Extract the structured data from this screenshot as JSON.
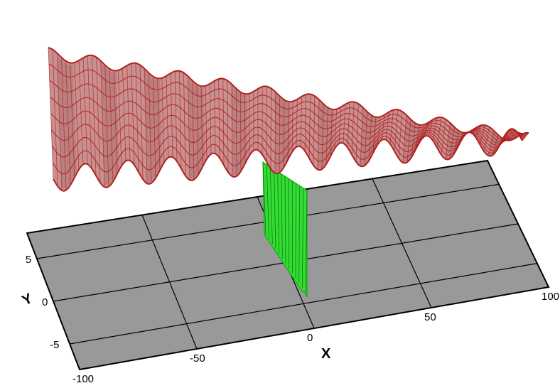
{
  "chart_data": {
    "type": "surface-3d",
    "title": "",
    "x_axis": {
      "label": "X",
      "ticks": [
        -100,
        -50,
        0,
        50,
        100
      ],
      "range": [
        -100,
        100
      ]
    },
    "y_axis": {
      "label": "Y",
      "ticks": [
        -5,
        0,
        5
      ],
      "range": [
        -8,
        8
      ]
    },
    "floor_plane": {
      "color": "#999999",
      "grid": true
    },
    "surfaces": [
      {
        "name": "",
        "color": "#b02020",
        "fill": "#c89090",
        "form": "wavy sheet",
        "wave_count": 11
      },
      {
        "name": "",
        "color": "#00aa00",
        "fill": "#33dd33",
        "form": "vertical sheet at x = 0"
      }
    ]
  }
}
